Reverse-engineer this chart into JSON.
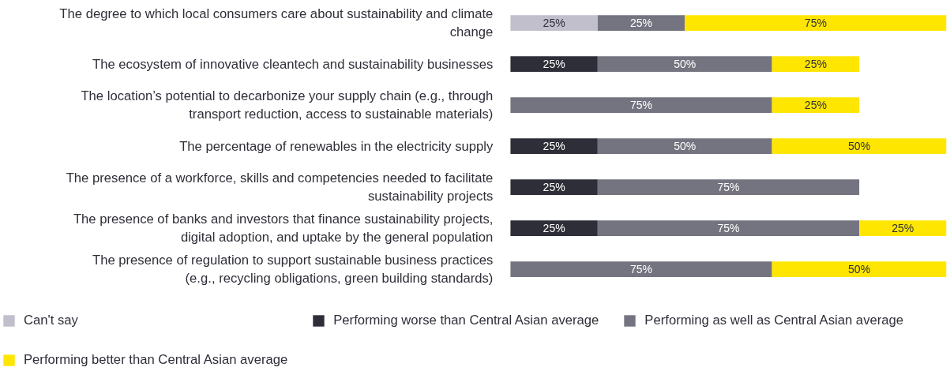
{
  "chart_data": {
    "type": "bar",
    "orientation": "horizontal",
    "stacked": true,
    "categories": [
      "The degree to which local consumers care about sustainability and climate change",
      "The ecosystem of innovative cleantech and sustainability businesses",
      "The location’s potential to decarbonize your supply chain (e.g., through transport reduction, access to sustainable materials)",
      "The percentage of renewables in the electricity supply",
      "The presence of a workforce, skills and competencies needed to facilitate sustainability projects",
      "The presence of banks and investors that finance sustainability projects, digital adoption, and uptake by the general population",
      "The presence of regulation to support sustainable business practices (e.g., recycling obligations, green building standards)"
    ],
    "series": [
      {
        "name": "Can't say",
        "color": "#c0bfcb",
        "values": [
          25,
          null,
          null,
          null,
          null,
          null,
          null
        ],
        "value_labels": [
          "25%",
          null,
          null,
          null,
          null,
          null,
          null
        ]
      },
      {
        "name": "Performing worse than Central Asian average",
        "color": "#2e2e38",
        "values": [
          null,
          25,
          null,
          25,
          25,
          25,
          null
        ],
        "value_labels": [
          null,
          "25%",
          null,
          "25%",
          "25%",
          "25%",
          null
        ]
      },
      {
        "name": "Performing as well as Central Asian average",
        "color": "#747480",
        "values": [
          25,
          50,
          75,
          50,
          75,
          75,
          75
        ],
        "value_labels": [
          "25%",
          "50%",
          "75%",
          "50%",
          "75%",
          "75%",
          "75%"
        ]
      },
      {
        "name": "Performing better than Central Asian average",
        "color": "#ffe600",
        "values": [
          75,
          25,
          25,
          50,
          null,
          25,
          50
        ],
        "value_labels": [
          "75%",
          "25%",
          "25%",
          "50%",
          null,
          "25%",
          "50%"
        ]
      }
    ],
    "legend": "bottom",
    "grid": false,
    "tick_labels": "y"
  }
}
